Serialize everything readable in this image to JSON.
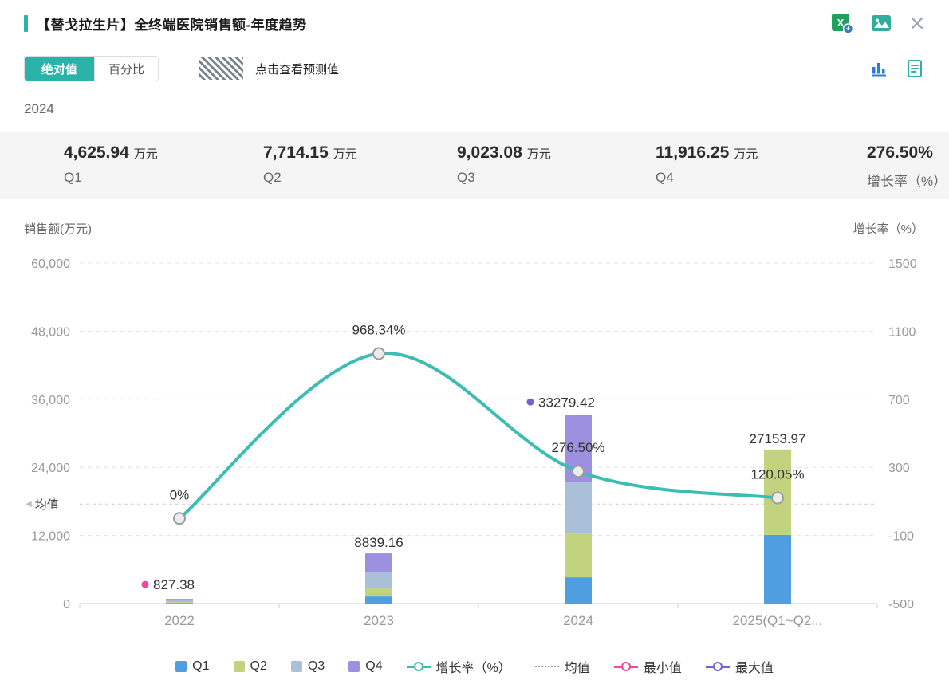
{
  "header": {
    "title": "【替戈拉生片】全终端医院销售额-年度趋势"
  },
  "toolbar": {
    "toggle": [
      {
        "label": "绝对值",
        "active": true
      },
      {
        "label": "百分比",
        "active": false
      }
    ],
    "forecast_hint": "点击查看预测值"
  },
  "year_label": "2024",
  "stats": [
    {
      "key": "q1",
      "value": "4,625.94",
      "unit": "万元",
      "label": "Q1"
    },
    {
      "key": "q2",
      "value": "7,714.15",
      "unit": "万元",
      "label": "Q2"
    },
    {
      "key": "q3",
      "value": "9,023.08",
      "unit": "万元",
      "label": "Q3"
    },
    {
      "key": "q4",
      "value": "11,916.25",
      "unit": "万元",
      "label": "Q4"
    },
    {
      "key": "growth",
      "value": "276.50%",
      "unit": "",
      "label": "增长率（%）"
    }
  ],
  "axes": {
    "left_title": "销售额(万元)",
    "right_title": "增长率（%）"
  },
  "chart_data": {
    "type": "bar",
    "subtype": "stacked-bars-with-dual-axis-line",
    "categories": [
      "2022",
      "2023",
      "2024",
      "2025(Q1~Q2..."
    ],
    "series": [
      {
        "name": "Q1",
        "type": "bar",
        "color": "#4f9fe0",
        "values": [
          117,
          1250,
          4625.94,
          12100
        ]
      },
      {
        "name": "Q2",
        "type": "bar",
        "color": "#c2d37f",
        "values": [
          131,
          1400,
          7714.15,
          15053.97
        ]
      },
      {
        "name": "Q3",
        "type": "bar",
        "color": "#a9c0d8",
        "values": [
          262,
          2800,
          9023.08,
          0
        ]
      },
      {
        "name": "Q4",
        "type": "bar",
        "color": "#9e90e0",
        "values": [
          317.38,
          3389.16,
          11916.25,
          0
        ]
      },
      {
        "name": "增长率（%）",
        "type": "line",
        "axis": "right",
        "color": "#3bbdb4",
        "values": [
          0,
          968.34,
          276.5,
          120.05
        ]
      }
    ],
    "totals": [
      827.38,
      8839.16,
      33279.42,
      27153.97
    ],
    "total_labels": [
      "827.38",
      "8839.16",
      "33279.42",
      "27153.97"
    ],
    "growth_labels": [
      "0%",
      "968.34%",
      "276.50%",
      "120.05%"
    ],
    "left_axis": {
      "min": 0,
      "max": 60000,
      "ticks": [
        "60,000",
        "48,000",
        "36,000",
        "24,000",
        "12,000",
        "0"
      ]
    },
    "right_axis": {
      "min": -500,
      "max": 1500,
      "ticks": [
        "1500",
        "1100",
        "700",
        "300",
        "-100",
        "-500"
      ]
    },
    "mean": {
      "label": "均值",
      "value": 17524.98
    },
    "min_marker": {
      "label": "最小值",
      "index": 0,
      "value": 827.38,
      "color": "#f0479c"
    },
    "max_marker": {
      "label": "最大值",
      "index": 2,
      "value": 33279.42,
      "color": "#6f63d2"
    },
    "legend": [
      {
        "key": "q1",
        "label": "Q1",
        "type": "square",
        "color": "#4f9fe0"
      },
      {
        "key": "q2",
        "label": "Q2",
        "type": "square",
        "color": "#c2d37f"
      },
      {
        "key": "q3",
        "label": "Q3",
        "type": "square",
        "color": "#a9c0d8"
      },
      {
        "key": "q4",
        "label": "Q4",
        "type": "square",
        "color": "#9e90e0"
      },
      {
        "key": "growth-rate",
        "label": "增长率（%）",
        "type": "line-circle",
        "color": "#3bbdb4"
      },
      {
        "key": "mean",
        "label": "均值",
        "type": "dotted-line",
        "color": "#9a9a9a"
      },
      {
        "key": "min",
        "label": "最小值",
        "type": "line-circle",
        "color": "#f0479c"
      },
      {
        "key": "max",
        "label": "最大值",
        "type": "line-circle",
        "color": "#6f63d2"
      }
    ]
  }
}
